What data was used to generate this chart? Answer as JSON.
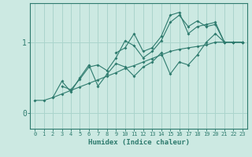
{
  "xlabel": "Humidex (Indice chaleur)",
  "bg_color": "#cce9e2",
  "line_color": "#2e7b6e",
  "grid_color": "#aad4cc",
  "xlim": [
    -0.5,
    23.5
  ],
  "ylim": [
    -0.22,
    1.55
  ],
  "yticks": [
    0,
    1
  ],
  "xticks": [
    0,
    1,
    2,
    3,
    4,
    5,
    6,
    7,
    8,
    9,
    10,
    11,
    12,
    13,
    14,
    15,
    16,
    17,
    18,
    19,
    20,
    21,
    22,
    23
  ],
  "series": [
    {
      "x": [
        0,
        1,
        2,
        3,
        4,
        5,
        6,
        7,
        8,
        9,
        10,
        11,
        12,
        13,
        14,
        15,
        16,
        17,
        18,
        19,
        20,
        21,
        22,
        23
      ],
      "y": [
        0.18,
        0.18,
        0.22,
        0.27,
        0.32,
        0.37,
        0.42,
        0.47,
        0.52,
        0.57,
        0.63,
        0.67,
        0.72,
        0.77,
        0.82,
        0.87,
        0.9,
        0.92,
        0.94,
        0.96,
        1.0,
        1.0,
        1.0,
        1.0
      ]
    },
    {
      "x": [
        2,
        3,
        4,
        5,
        6,
        7,
        8,
        9,
        10,
        11,
        12,
        13,
        14,
        15,
        16,
        17,
        18,
        19,
        20,
        21,
        22,
        23
      ],
      "y": [
        0.22,
        0.45,
        0.3,
        0.5,
        0.68,
        0.38,
        0.55,
        0.7,
        0.65,
        0.52,
        0.65,
        0.72,
        0.85,
        0.55,
        0.72,
        0.68,
        0.82,
        1.0,
        1.12,
        1.0,
        1.0,
        1.0
      ]
    },
    {
      "x": [
        3,
        4,
        5,
        6,
        7,
        8,
        9,
        10,
        11,
        12,
        13,
        14,
        15,
        16,
        17,
        18,
        19,
        20,
        21,
        22,
        23
      ],
      "y": [
        0.38,
        0.33,
        0.48,
        0.65,
        0.68,
        0.6,
        0.78,
        1.02,
        0.95,
        0.78,
        0.87,
        1.02,
        1.28,
        1.38,
        1.22,
        1.3,
        1.22,
        1.25,
        1.0,
        1.0,
        1.0
      ]
    },
    {
      "x": [
        9,
        10,
        11,
        12,
        13,
        14,
        15,
        16,
        17,
        18,
        19,
        20,
        21,
        22,
        23
      ],
      "y": [
        0.85,
        0.92,
        1.12,
        0.87,
        0.92,
        1.08,
        1.38,
        1.42,
        1.12,
        1.22,
        1.25,
        1.28,
        1.0,
        1.0,
        1.0
      ]
    }
  ]
}
